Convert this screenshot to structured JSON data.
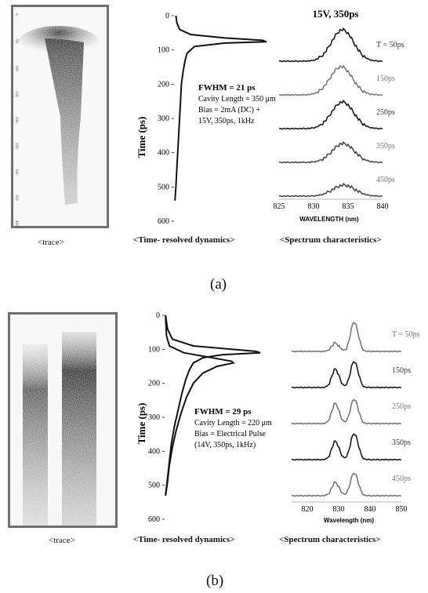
{
  "panel_a": {
    "letter": "(a)",
    "trace_caption": "<trace>",
    "trace_axis_ticks": [
      "0",
      "50",
      "100",
      "150",
      "200",
      "250",
      "300",
      "350",
      "400"
    ],
    "dynamics_caption": "<Time- resolved dynamics>",
    "spectrum_caption": "<Spectrum characteristics>",
    "fwhm": "FWHM = 21 ps",
    "info_lines": [
      "Cavity Length = 350  μm",
      "Bias = 2mA (DC) +",
      "15V, 350ps, 1kHz"
    ],
    "spectrum_title": "15V, 350ps",
    "spectrum_labels": [
      "T = 50ps",
      "150ps",
      "250ps",
      "350ps",
      "450ps"
    ],
    "spectrum_colors": [
      "#1a1a1a",
      "#7a7a7a",
      "#1a1a1a",
      "#4a4a4a",
      "#4a4a4a"
    ]
  },
  "panel_b": {
    "letter": "(b)",
    "trace_caption": "<trace>",
    "dynamics_caption": "<Time- resolved dynamics>",
    "spectrum_caption": "<Spectrum characteristics>",
    "fwhm": "FWHM = 29 ps",
    "info_lines": [
      "Cavity Length = 220  μm",
      "Bias = Electrical Pulse",
      "(14V, 350ps, 1kHz)"
    ],
    "spectrum_labels": [
      "T = 50ps",
      "150ps",
      "250ps",
      "350ps",
      "450ps"
    ],
    "spectrum_colors": [
      "#777777",
      "#1a1a1a",
      "#777777",
      "#1a1a1a",
      "#777777"
    ]
  },
  "chart_data": [
    {
      "id": "a-time-resolved",
      "type": "line",
      "title": "",
      "xlabel": "",
      "ylabel": "Time (ps)",
      "ylim": [
        0,
        600
      ],
      "yticks": [
        "0",
        "100",
        "200",
        "300",
        "400",
        "500",
        "600"
      ],
      "series": [
        {
          "time": [
            0,
            20,
            40,
            55,
            65,
            72,
            76,
            80,
            90,
            110,
            130,
            160,
            200,
            250,
            300,
            350,
            400,
            450,
            500,
            540
          ],
          "intensity": [
            0.02,
            0.03,
            0.06,
            0.18,
            0.55,
            0.95,
            1.0,
            0.55,
            0.22,
            0.14,
            0.12,
            0.1,
            0.08,
            0.07,
            0.06,
            0.05,
            0.04,
            0.03,
            0.02,
            0.01
          ]
        }
      ]
    },
    {
      "id": "a-spectrum",
      "type": "line",
      "title": "15V, 350ps",
      "xlabel": "WAVELENGTH (nm)",
      "ylabel": "",
      "xlim": [
        825,
        840
      ],
      "xticks": [
        "825",
        "830",
        "835",
        "840"
      ],
      "series": [
        {
          "name": "T = 50ps",
          "peak_nm": 834.2,
          "amplitude": 1.0
        },
        {
          "name": "150ps",
          "peak_nm": 834.0,
          "amplitude": 0.9
        },
        {
          "name": "250ps",
          "peak_nm": 834.2,
          "amplitude": 0.85
        },
        {
          "name": "350ps",
          "peak_nm": 834.3,
          "amplitude": 0.6
        },
        {
          "name": "450ps",
          "peak_nm": 834.4,
          "amplitude": 0.35
        }
      ]
    },
    {
      "id": "b-time-resolved",
      "type": "line",
      "title": "",
      "xlabel": "",
      "ylabel": "Time (ps)",
      "ylim": [
        0,
        600
      ],
      "yticks": [
        "0",
        "100",
        "200",
        "300",
        "400",
        "500",
        "600"
      ],
      "series": [
        {
          "time": [
            0,
            40,
            70,
            90,
            100,
            106,
            110,
            116,
            125,
            140,
            160,
            190,
            230,
            280,
            330,
            380,
            430,
            480,
            530
          ],
          "intensity": [
            0.01,
            0.03,
            0.08,
            0.3,
            0.7,
            0.95,
            1.0,
            0.6,
            0.4,
            0.3,
            0.26,
            0.22,
            0.18,
            0.14,
            0.1,
            0.07,
            0.05,
            0.03,
            0.01
          ]
        },
        {
          "time": [
            0,
            60,
            90,
            110,
            125,
            135,
            140,
            150,
            170,
            200,
            240,
            290,
            340,
            390,
            440,
            490,
            530
          ],
          "intensity": [
            0.01,
            0.02,
            0.05,
            0.2,
            0.5,
            0.7,
            0.72,
            0.55,
            0.4,
            0.3,
            0.23,
            0.17,
            0.12,
            0.08,
            0.05,
            0.03,
            0.01
          ]
        }
      ]
    },
    {
      "id": "b-spectrum",
      "type": "line",
      "title": "",
      "xlabel": "Wavelength (nm)",
      "ylabel": "",
      "xlim": [
        815,
        850
      ],
      "xticks": [
        "820",
        "830",
        "840",
        "850"
      ],
      "series": [
        {
          "name": "T = 50ps",
          "peaks_nm": [
            829,
            835
          ],
          "amplitudes": [
            0.25,
            0.9
          ]
        },
        {
          "name": "150ps",
          "peaks_nm": [
            829,
            835
          ],
          "amplitudes": [
            0.55,
            0.8
          ]
        },
        {
          "name": "250ps",
          "peaks_nm": [
            829,
            835
          ],
          "amplitudes": [
            0.6,
            0.75
          ]
        },
        {
          "name": "350ps",
          "peaks_nm": [
            829,
            835
          ],
          "amplitudes": [
            0.55,
            0.8
          ]
        },
        {
          "name": "450ps",
          "peaks_nm": [
            829,
            835
          ],
          "amplitudes": [
            0.4,
            0.7
          ]
        }
      ]
    }
  ]
}
